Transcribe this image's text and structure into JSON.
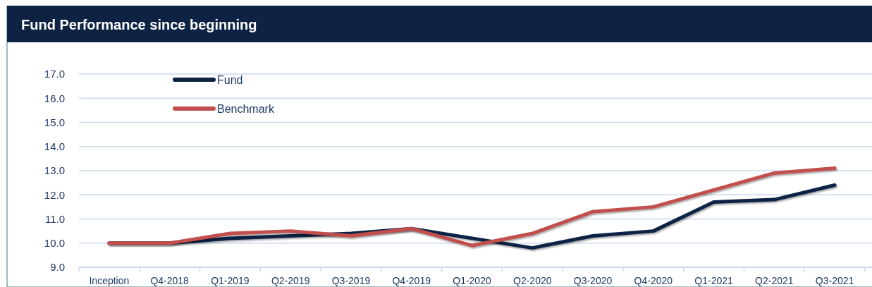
{
  "chart_data": {
    "type": "line",
    "title": "Fund Performance since beginning",
    "categories": [
      "Inception",
      "Q4-2018",
      "Q1-2019",
      "Q2-2019",
      "Q3-2019",
      "Q4-2019",
      "Q1-2020",
      "Q2-2020",
      "Q3-2020",
      "Q4-2020",
      "Q1-2021",
      "Q2-2021",
      "Q3-2021"
    ],
    "series": [
      {
        "name": "Fund",
        "color": "#0e2344",
        "values": [
          10.0,
          10.0,
          10.2,
          10.3,
          10.4,
          10.6,
          10.2,
          9.8,
          10.3,
          10.5,
          11.7,
          11.8,
          12.4
        ]
      },
      {
        "name": "Benchmark",
        "color": "#c0504d",
        "values": [
          10.0,
          10.0,
          10.4,
          10.5,
          10.3,
          10.6,
          9.9,
          10.4,
          11.3,
          11.5,
          12.2,
          12.9,
          13.1
        ]
      }
    ],
    "ylim": [
      9,
      17
    ],
    "yticks": [
      {
        "value": 9,
        "label": "9.0"
      },
      {
        "value": 10,
        "label": "10.0"
      },
      {
        "value": 11,
        "label": "11.0"
      },
      {
        "value": 12,
        "label": "12.0"
      },
      {
        "value": 13,
        "label": "13.0"
      },
      {
        "value": 14,
        "label": "14.0"
      },
      {
        "value": 15,
        "label": "15.0"
      },
      {
        "value": 16,
        "label": "16.0"
      },
      {
        "value": 17,
        "label": "17.0"
      }
    ],
    "grid": "y",
    "legend": "top left",
    "marker": "none",
    "line_style": "solid"
  }
}
